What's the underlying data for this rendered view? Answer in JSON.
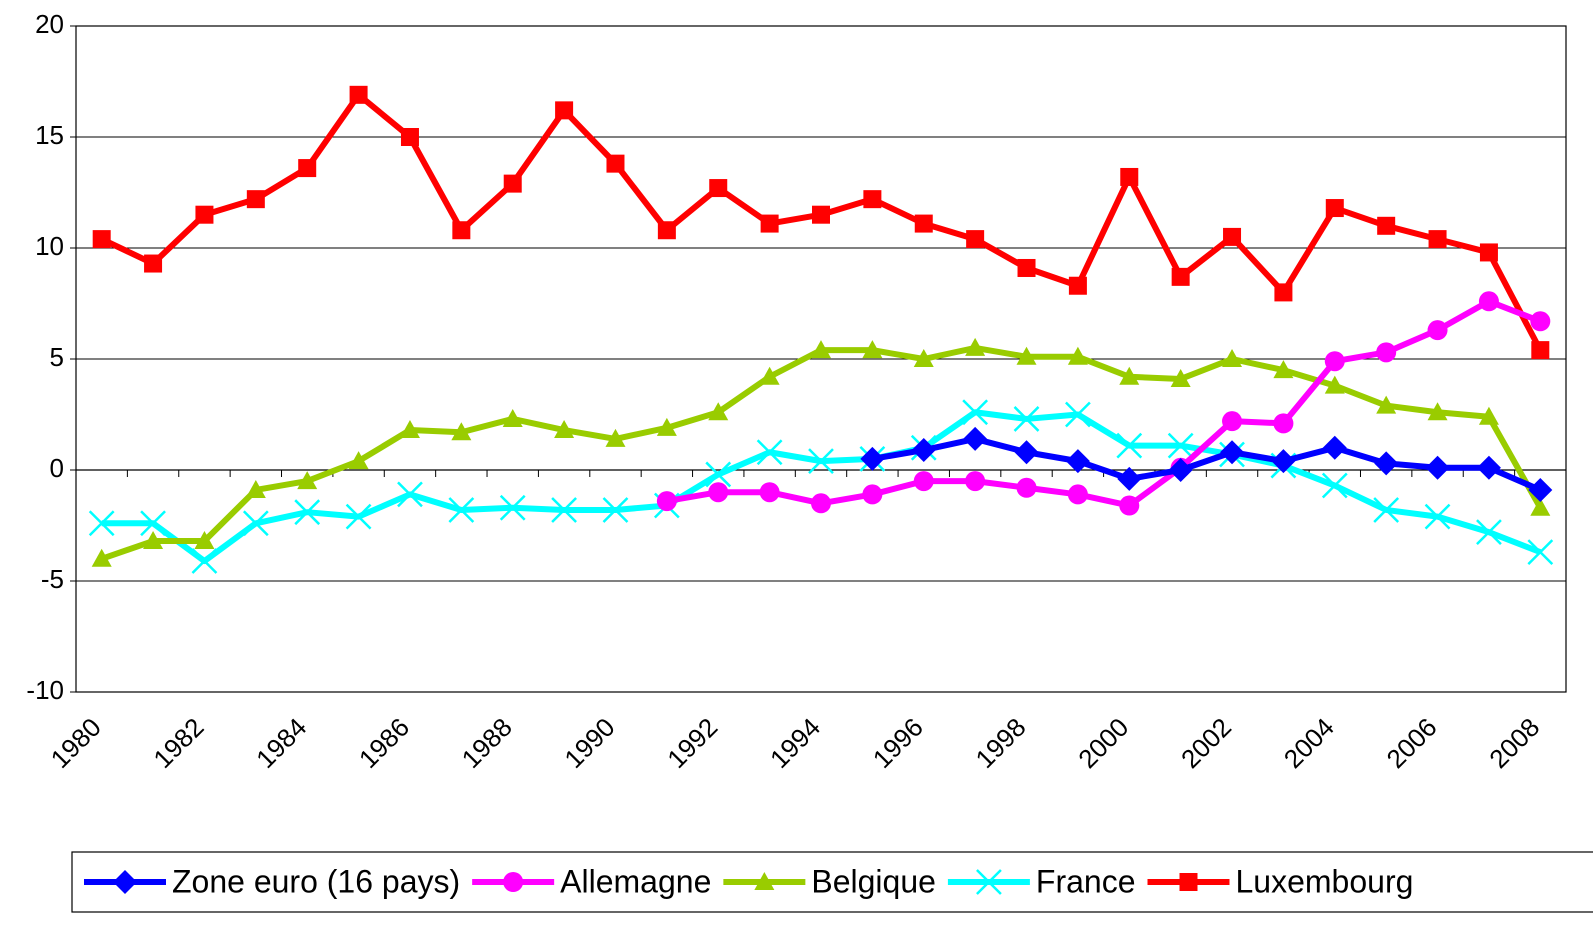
{
  "chart_data": {
    "type": "line",
    "categories": [
      "1980",
      null,
      "1982",
      null,
      "1984",
      null,
      "1986",
      null,
      "1988",
      null,
      "1990",
      null,
      "1992",
      null,
      "1994",
      null,
      "1996",
      null,
      "1998",
      null,
      "2000",
      null,
      "2002",
      null,
      "2004",
      null,
      "2006",
      null,
      "2008"
    ],
    "series": [
      {
        "name": "Zone euro (16 pays)",
        "color": "#0000ff",
        "marker": "diamond",
        "values": [
          null,
          null,
          null,
          null,
          null,
          null,
          null,
          null,
          null,
          null,
          null,
          null,
          null,
          null,
          null,
          0.5,
          0.9,
          1.4,
          0.8,
          0.4,
          -0.4,
          0.0,
          0.8,
          0.4,
          1.0,
          0.3,
          0.1,
          0.1,
          -0.9
        ]
      },
      {
        "name": "Allemagne",
        "color": "#ff00ff",
        "marker": "circle",
        "values": [
          null,
          null,
          null,
          null,
          null,
          null,
          null,
          null,
          null,
          null,
          null,
          -1.4,
          -1.0,
          -1.0,
          -1.5,
          -1.1,
          -0.5,
          -0.5,
          -0.8,
          -1.1,
          -1.6,
          0.1,
          2.2,
          2.1,
          4.9,
          5.3,
          6.3,
          7.6,
          6.7
        ]
      },
      {
        "name": "Belgique",
        "color": "#99cc00",
        "marker": "triangle",
        "values": [
          -4.0,
          -3.2,
          -3.2,
          -0.9,
          -0.5,
          0.4,
          1.8,
          1.7,
          2.3,
          1.8,
          1.4,
          1.9,
          2.6,
          4.2,
          5.4,
          5.4,
          5.0,
          5.5,
          5.1,
          5.1,
          4.2,
          4.1,
          5.0,
          4.5,
          3.8,
          2.9,
          2.6,
          2.4,
          -1.7
        ]
      },
      {
        "name": "France",
        "color": "#00ffff",
        "marker": "x",
        "values": [
          -2.4,
          -2.4,
          -4.1,
          -2.4,
          -1.9,
          -2.1,
          -1.1,
          -1.8,
          -1.7,
          -1.8,
          -1.8,
          -1.6,
          -0.2,
          0.8,
          0.4,
          0.5,
          1.0,
          2.6,
          2.3,
          2.5,
          1.1,
          1.1,
          0.7,
          0.2,
          -0.7,
          -1.8,
          -2.1,
          -2.8,
          -3.7
        ]
      },
      {
        "name": "Luxembourg",
        "color": "#ff0000",
        "marker": "square",
        "values": [
          10.4,
          9.3,
          11.5,
          12.2,
          13.6,
          16.9,
          15.0,
          10.8,
          12.9,
          16.2,
          13.8,
          10.8,
          12.7,
          11.1,
          11.5,
          12.2,
          11.1,
          10.4,
          9.1,
          8.3,
          13.2,
          8.7,
          10.5,
          8.0,
          11.8,
          11.0,
          10.4,
          9.8,
          5.4
        ]
      }
    ],
    "ylim": [
      -10,
      20
    ],
    "yticks": [
      -10,
      -5,
      0,
      5,
      10,
      15,
      20
    ],
    "grid": true,
    "legend": "bottom"
  }
}
